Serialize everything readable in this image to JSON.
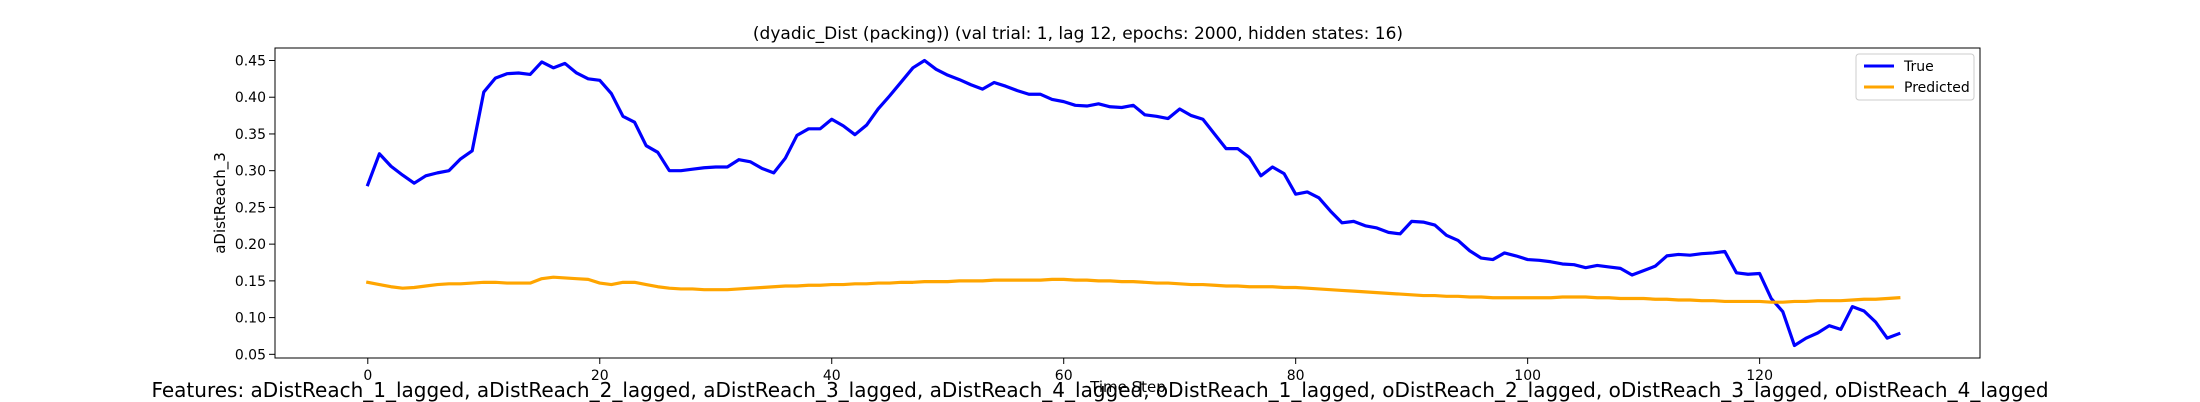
{
  "chart_data": {
    "type": "line",
    "title": "(dyadic_Dist (packing)) (val trial: 1, lag 12, epochs: 2000, hidden states: 16)",
    "xlabel": "Time Step",
    "ylabel": "aDistReach_3",
    "xlim": [
      -8,
      139
    ],
    "ylim": [
      0.045,
      0.467
    ],
    "xticks": [
      0,
      20,
      40,
      60,
      80,
      100,
      120
    ],
    "yticks": [
      0.05,
      0.1,
      0.15,
      0.2,
      0.25,
      0.3,
      0.35,
      0.4,
      0.45
    ],
    "ytick_labels": [
      "0.05",
      "0.10",
      "0.15",
      "0.20",
      "0.25",
      "0.30",
      "0.35",
      "0.40",
      "0.45"
    ],
    "legend_position": "top-right",
    "grid": false,
    "series": [
      {
        "name": "True",
        "color": "#0000ff",
        "x": [
          0,
          1,
          2,
          3,
          4,
          5,
          6,
          7,
          8,
          9,
          10,
          11,
          12,
          13,
          14,
          15,
          16,
          17,
          18,
          19,
          20,
          21,
          22,
          23,
          24,
          25,
          26,
          27,
          28,
          29,
          30,
          31,
          32,
          33,
          34,
          35,
          36,
          37,
          38,
          39,
          40,
          41,
          42,
          43,
          44,
          45,
          46,
          47,
          48,
          49,
          50,
          51,
          52,
          53,
          54,
          55,
          56,
          57,
          58,
          59,
          60,
          61,
          62,
          63,
          64,
          65,
          66,
          67,
          68,
          69,
          70,
          71,
          72,
          73,
          74,
          75,
          76,
          77,
          78,
          79,
          80,
          81,
          82,
          83,
          84,
          85,
          86,
          87,
          88,
          89,
          90,
          91,
          92,
          93,
          94,
          95,
          96,
          97,
          98,
          99,
          100,
          101,
          102,
          103,
          104,
          105,
          106,
          107,
          108,
          109,
          110,
          111,
          112,
          113,
          114,
          115,
          116,
          117,
          118,
          119,
          120,
          121,
          122,
          123,
          124,
          125,
          126,
          127,
          128,
          129,
          130,
          131,
          132
        ],
        "values": [
          0.281,
          0.323,
          0.306,
          0.294,
          0.283,
          0.293,
          0.297,
          0.3,
          0.316,
          0.327,
          0.407,
          0.426,
          0.432,
          0.433,
          0.431,
          0.448,
          0.44,
          0.446,
          0.433,
          0.425,
          0.423,
          0.405,
          0.374,
          0.366,
          0.334,
          0.325,
          0.3,
          0.3,
          0.302,
          0.304,
          0.305,
          0.305,
          0.315,
          0.312,
          0.303,
          0.297,
          0.317,
          0.348,
          0.357,
          0.357,
          0.37,
          0.361,
          0.349,
          0.362,
          0.384,
          0.402,
          0.421,
          0.44,
          0.45,
          0.438,
          0.43,
          0.424,
          0.417,
          0.411,
          0.42,
          0.415,
          0.409,
          0.404,
          0.404,
          0.397,
          0.394,
          0.389,
          0.388,
          0.391,
          0.387,
          0.386,
          0.389,
          0.376,
          0.374,
          0.371,
          0.384,
          0.375,
          0.37,
          0.35,
          0.33,
          0.33,
          0.318,
          0.293,
          0.305,
          0.296,
          0.268,
          0.271,
          0.263,
          0.245,
          0.229,
          0.231,
          0.225,
          0.222,
          0.216,
          0.214,
          0.231,
          0.23,
          0.226,
          0.212,
          0.205,
          0.191,
          0.181,
          0.179,
          0.188,
          0.184,
          0.179,
          0.178,
          0.176,
          0.173,
          0.172,
          0.168,
          0.171,
          0.169,
          0.167,
          0.158,
          0.164,
          0.17,
          0.184,
          0.186,
          0.185,
          0.187,
          0.188,
          0.19,
          0.161,
          0.159,
          0.16,
          0.126,
          0.108,
          0.062,
          0.072,
          0.079,
          0.089,
          0.084,
          0.115,
          0.109,
          0.094,
          0.072,
          0.078
        ]
      },
      {
        "name": "Predicted",
        "color": "#ffa500",
        "x": [
          0,
          1,
          2,
          3,
          4,
          5,
          6,
          7,
          8,
          9,
          10,
          11,
          12,
          13,
          14,
          15,
          16,
          17,
          18,
          19,
          20,
          21,
          22,
          23,
          24,
          25,
          26,
          27,
          28,
          29,
          30,
          31,
          32,
          33,
          34,
          35,
          36,
          37,
          38,
          39,
          40,
          41,
          42,
          43,
          44,
          45,
          46,
          47,
          48,
          49,
          50,
          51,
          52,
          53,
          54,
          55,
          56,
          57,
          58,
          59,
          60,
          61,
          62,
          63,
          64,
          65,
          66,
          67,
          68,
          69,
          70,
          71,
          72,
          73,
          74,
          75,
          76,
          77,
          78,
          79,
          80,
          81,
          82,
          83,
          84,
          85,
          86,
          87,
          88,
          89,
          90,
          91,
          92,
          93,
          94,
          95,
          96,
          97,
          98,
          99,
          100,
          101,
          102,
          103,
          104,
          105,
          106,
          107,
          108,
          109,
          110,
          111,
          112,
          113,
          114,
          115,
          116,
          117,
          118,
          119,
          120,
          121,
          122,
          123,
          124,
          125,
          126,
          127,
          128,
          129,
          130,
          131,
          132
        ],
        "values": [
          0.148,
          0.145,
          0.142,
          0.14,
          0.141,
          0.143,
          0.145,
          0.146,
          0.146,
          0.147,
          0.148,
          0.148,
          0.147,
          0.147,
          0.147,
          0.153,
          0.155,
          0.154,
          0.153,
          0.152,
          0.147,
          0.145,
          0.148,
          0.148,
          0.145,
          0.142,
          0.14,
          0.139,
          0.139,
          0.138,
          0.138,
          0.138,
          0.139,
          0.14,
          0.141,
          0.142,
          0.143,
          0.143,
          0.144,
          0.144,
          0.145,
          0.145,
          0.146,
          0.146,
          0.147,
          0.147,
          0.148,
          0.148,
          0.149,
          0.149,
          0.149,
          0.15,
          0.15,
          0.15,
          0.151,
          0.151,
          0.151,
          0.151,
          0.151,
          0.152,
          0.152,
          0.151,
          0.151,
          0.15,
          0.15,
          0.149,
          0.149,
          0.148,
          0.147,
          0.147,
          0.146,
          0.145,
          0.145,
          0.144,
          0.143,
          0.143,
          0.142,
          0.142,
          0.142,
          0.141,
          0.141,
          0.14,
          0.139,
          0.138,
          0.137,
          0.136,
          0.135,
          0.134,
          0.133,
          0.132,
          0.131,
          0.13,
          0.13,
          0.129,
          0.129,
          0.128,
          0.128,
          0.127,
          0.127,
          0.127,
          0.127,
          0.127,
          0.127,
          0.128,
          0.128,
          0.128,
          0.127,
          0.127,
          0.126,
          0.126,
          0.126,
          0.125,
          0.125,
          0.124,
          0.124,
          0.123,
          0.123,
          0.122,
          0.122,
          0.122,
          0.122,
          0.121,
          0.121,
          0.122,
          0.122,
          0.123,
          0.123,
          0.123,
          0.124,
          0.125,
          0.125,
          0.126,
          0.127
        ]
      }
    ]
  },
  "footer_text": "Features: aDistReach_1_lagged, aDistReach_2_lagged, aDistReach_3_lagged, aDistReach_4_lagged, oDistReach_1_lagged, oDistReach_2_lagged, oDistReach_3_lagged, oDistReach_4_lagged"
}
